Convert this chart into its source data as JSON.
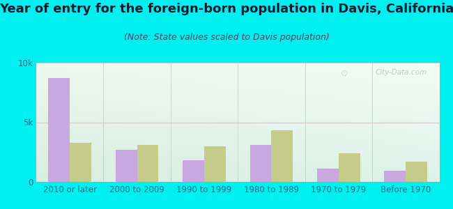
{
  "title": "Year of entry for the foreign-born population in Davis, California",
  "subtitle": "(Note: State values scaled to Davis population)",
  "categories": [
    "2010 or later",
    "2000 to 2009",
    "1990 to 1999",
    "1980 to 1989",
    "1970 to 1979",
    "Before 1970"
  ],
  "davis_values": [
    8700,
    2700,
    1800,
    3100,
    1100,
    950
  ],
  "california_values": [
    3300,
    3100,
    3000,
    4300,
    2400,
    1700
  ],
  "davis_color": "#c9a8e0",
  "california_color": "#c5cc8a",
  "background_outer": "#00f0f0",
  "grid_color": "#cccccc",
  "ylim": [
    0,
    10000
  ],
  "yticks": [
    0,
    5000,
    10000
  ],
  "ytick_labels": [
    "0",
    "5k",
    "10k"
  ],
  "bar_width": 0.32,
  "title_fontsize": 13,
  "subtitle_fontsize": 9,
  "legend_fontsize": 11,
  "tick_fontsize": 8.5,
  "title_color": "#1a1a2e",
  "subtitle_color": "#444466",
  "tick_color": "#336688"
}
